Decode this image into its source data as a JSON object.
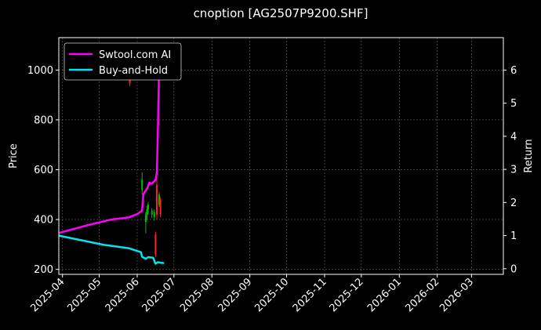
{
  "chart_data": {
    "type": "line",
    "title": "cnoption [AG2507P9200.SHF]",
    "ylabel_left": "Price",
    "ylabel_right": "Return",
    "xlim": [
      "2025-03-29",
      "2026-03-27"
    ],
    "ylim_left": [
      180,
      1130
    ],
    "ylim_right": [
      -0.17,
      6.98
    ],
    "x_ticks": [
      "2025-04",
      "2025-05",
      "2025-06",
      "2025-07",
      "2025-08",
      "2025-09",
      "2025-10",
      "2025-11",
      "2025-12",
      "2026-01",
      "2026-02",
      "2026-03"
    ],
    "x_tick_dates": [
      "2025-04-01",
      "2025-05-01",
      "2025-06-01",
      "2025-07-01",
      "2025-08-01",
      "2025-09-01",
      "2025-10-01",
      "2025-11-01",
      "2025-12-01",
      "2026-01-01",
      "2026-02-01",
      "2026-03-01"
    ],
    "y_ticks_left": [
      200,
      400,
      600,
      800,
      1000
    ],
    "y_ticks_right": [
      0,
      1,
      2,
      3,
      4,
      5,
      6
    ],
    "grid": true,
    "legend_position": "top-left",
    "background": "#000000",
    "series": [
      {
        "name": "Swtool.com AI",
        "axis": "right",
        "color": "#ff00ff",
        "points": [
          [
            "2025-03-29",
            1.08
          ],
          [
            "2025-04-20",
            1.3
          ],
          [
            "2025-05-10",
            1.48
          ],
          [
            "2025-05-25",
            1.55
          ],
          [
            "2025-06-01",
            1.65
          ],
          [
            "2025-06-05",
            1.75
          ],
          [
            "2025-06-06",
            2.25
          ],
          [
            "2025-06-09",
            2.42
          ],
          [
            "2025-06-11",
            2.6
          ],
          [
            "2025-06-13",
            2.57
          ],
          [
            "2025-06-16",
            2.68
          ],
          [
            "2025-06-17",
            2.9
          ],
          [
            "2025-06-18",
            4.3
          ],
          [
            "2025-06-19",
            6.3
          ],
          [
            "2025-06-20",
            6.6
          ]
        ]
      },
      {
        "name": "Buy-and-Hold",
        "axis": "right",
        "color": "#00e5ee",
        "points": [
          [
            "2025-03-29",
            1.0
          ],
          [
            "2025-05-05",
            0.72
          ],
          [
            "2025-05-25",
            0.62
          ],
          [
            "2025-06-04",
            0.5
          ],
          [
            "2025-06-05",
            0.36
          ],
          [
            "2025-06-08",
            0.3
          ],
          [
            "2025-06-10",
            0.35
          ],
          [
            "2025-06-14",
            0.33
          ],
          [
            "2025-06-16",
            0.15
          ],
          [
            "2025-06-18",
            0.2
          ],
          [
            "2025-06-20",
            0.18
          ],
          [
            "2025-06-23",
            0.17
          ]
        ]
      }
    ],
    "candles": [
      {
        "date": "2025-05-26",
        "open": 960,
        "close": 945,
        "high": 970,
        "low": 935
      },
      {
        "date": "2025-06-05",
        "open": 520,
        "close": 560,
        "high": 590,
        "low": 500
      },
      {
        "date": "2025-06-08",
        "open": 390,
        "close": 420,
        "high": 430,
        "low": 345
      },
      {
        "date": "2025-06-09",
        "open": 420,
        "close": 440,
        "high": 455,
        "low": 400
      },
      {
        "date": "2025-06-10",
        "open": 440,
        "close": 460,
        "high": 470,
        "low": 420
      },
      {
        "date": "2025-06-13",
        "open": 420,
        "close": 435,
        "high": 445,
        "low": 405
      },
      {
        "date": "2025-06-15",
        "open": 410,
        "close": 430,
        "high": 440,
        "low": 395
      },
      {
        "date": "2025-06-16",
        "open": 340,
        "close": 260,
        "high": 350,
        "low": 250
      },
      {
        "date": "2025-06-17",
        "open": 540,
        "close": 420,
        "high": 570,
        "low": 400
      },
      {
        "date": "2025-06-19",
        "open": 460,
        "close": 500,
        "high": 510,
        "low": 450
      },
      {
        "date": "2025-06-20",
        "open": 480,
        "close": 420,
        "high": 490,
        "low": 410
      }
    ]
  }
}
